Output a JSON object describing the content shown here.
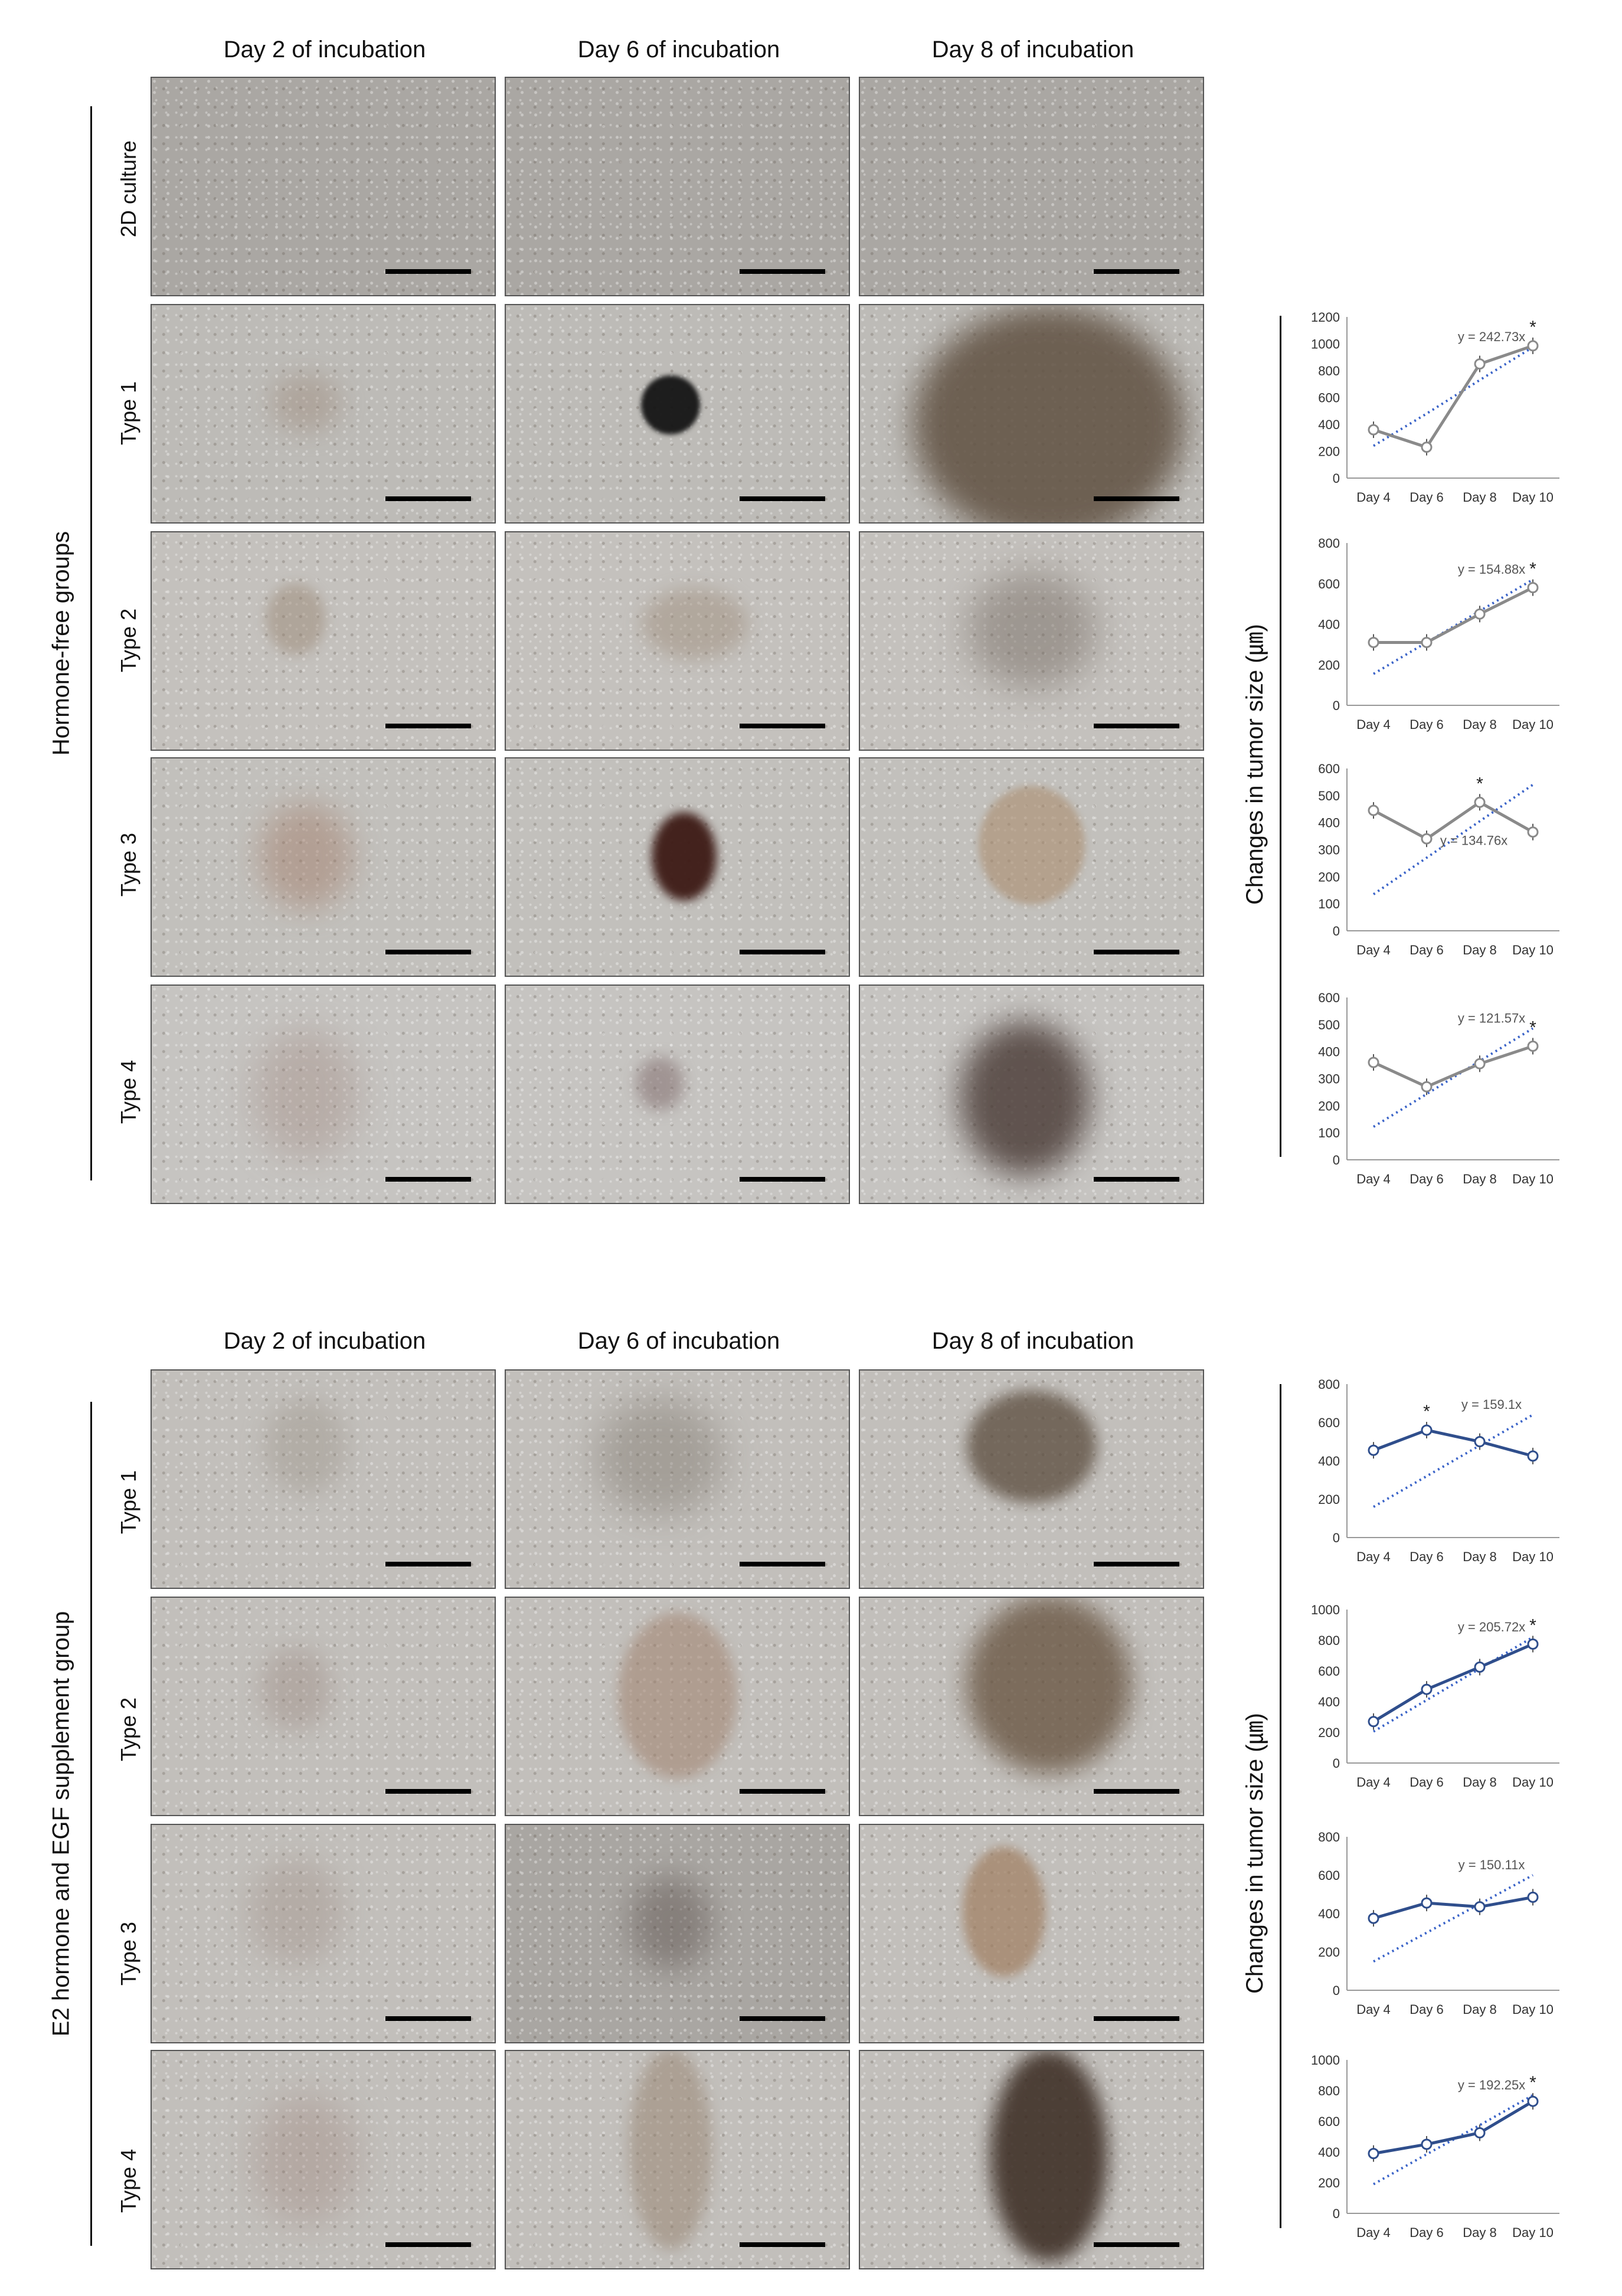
{
  "top": {
    "col_headers": [
      "Day 2 of incubation",
      "Day 6 of incubation",
      "Day 8 of incubation"
    ],
    "group_label": "Hormone-free groups",
    "row_labels": [
      "2D culture",
      "Type 1",
      "Type 2",
      "Type 3",
      "Type 4"
    ],
    "y_axis_label": "Changes in tumor size (㎛)"
  },
  "bottom": {
    "col_headers": [
      "Day 2 of incubation",
      "Day 6 of incubation",
      "Day 8 of incubation"
    ],
    "group_label": "E2 hormone and EGF supplement group",
    "row_labels": [
      "Type 1",
      "Type 2",
      "Type 3",
      "Type 4"
    ],
    "y_axis_label": "Changes in tumor size (㎛)"
  },
  "chart_data": [
    {
      "type": "line",
      "panel": "Hormone-free Type 1",
      "categories": [
        "Day 4",
        "Day 6",
        "Day 8",
        "Day 10"
      ],
      "series": [
        {
          "values": [
            360,
            230,
            850,
            985
          ]
        }
      ],
      "trend_label": "y = 242.73x",
      "trend": [
        240,
        480,
        730,
        975
      ],
      "ylim": [
        0,
        1200
      ],
      "yticks": [
        0,
        200,
        400,
        600,
        800,
        1000,
        1200
      ],
      "star_index": 3,
      "line_color": "#8a8a8a"
    },
    {
      "type": "line",
      "panel": "Hormone-free Type 2",
      "categories": [
        "Day 4",
        "Day 6",
        "Day 8",
        "Day 10"
      ],
      "series": [
        {
          "values": [
            310,
            310,
            450,
            580
          ]
        }
      ],
      "trend_label": "y = 154.88x",
      "trend": [
        155,
        310,
        465,
        620
      ],
      "ylim": [
        0,
        800
      ],
      "yticks": [
        0,
        200,
        400,
        600,
        800
      ],
      "star_index": 3,
      "line_color": "#8a8a8a"
    },
    {
      "type": "line",
      "panel": "Hormone-free Type 3",
      "categories": [
        "Day 4",
        "Day 6",
        "Day 8",
        "Day 10"
      ],
      "series": [
        {
          "values": [
            445,
            340,
            475,
            365
          ]
        }
      ],
      "trend_label": "y = 134.76x",
      "trend": [
        135,
        270,
        405,
        540
      ],
      "ylim": [
        0,
        600
      ],
      "yticks": [
        0,
        100,
        200,
        300,
        400,
        500,
        600
      ],
      "star_index": 2,
      "line_color": "#8a8a8a"
    },
    {
      "type": "line",
      "panel": "Hormone-free Type 4",
      "categories": [
        "Day 4",
        "Day 6",
        "Day 8",
        "Day 10"
      ],
      "series": [
        {
          "values": [
            360,
            270,
            355,
            420
          ]
        }
      ],
      "trend_label": "y = 121.57x",
      "trend": [
        122,
        243,
        365,
        486
      ],
      "ylim": [
        0,
        600
      ],
      "yticks": [
        0,
        100,
        200,
        300,
        400,
        500,
        600
      ],
      "star_index": 3,
      "line_color": "#8a8a8a"
    },
    {
      "type": "line",
      "panel": "E2+EGF Type 1",
      "categories": [
        "Day 4",
        "Day 6",
        "Day 8",
        "Day 10"
      ],
      "series": [
        {
          "values": [
            455,
            560,
            500,
            425
          ]
        }
      ],
      "trend_label": "y = 159.1x",
      "trend": [
        160,
        320,
        480,
        640
      ],
      "ylim": [
        0,
        800
      ],
      "yticks": [
        0,
        200,
        400,
        600,
        800
      ],
      "star_index": 1,
      "line_color": "#2f4e8c"
    },
    {
      "type": "line",
      "panel": "E2+EGF Type 2",
      "categories": [
        "Day 4",
        "Day 6",
        "Day 8",
        "Day 10"
      ],
      "series": [
        {
          "values": [
            270,
            480,
            625,
            775
          ]
        }
      ],
      "trend_label": "y = 205.72x",
      "trend": [
        205,
        410,
        615,
        820
      ],
      "ylim": [
        0,
        1000
      ],
      "yticks": [
        0,
        200,
        400,
        600,
        800,
        1000
      ],
      "star_index": 3,
      "line_color": "#2f4e8c"
    },
    {
      "type": "line",
      "panel": "E2+EGF Type 3",
      "categories": [
        "Day 4",
        "Day 6",
        "Day 8",
        "Day 10"
      ],
      "series": [
        {
          "values": [
            375,
            455,
            435,
            485
          ]
        }
      ],
      "trend_label": "y = 150.11x",
      "trend": [
        150,
        300,
        450,
        600
      ],
      "ylim": [
        0,
        800
      ],
      "yticks": [
        0,
        200,
        400,
        600,
        800
      ],
      "star_index": -1,
      "line_color": "#2f4e8c"
    },
    {
      "type": "line",
      "panel": "E2+EGF Type 4",
      "categories": [
        "Day 4",
        "Day 6",
        "Day 8",
        "Day 10"
      ],
      "series": [
        {
          "values": [
            390,
            450,
            525,
            730
          ]
        }
      ],
      "trend_label": "y = 192.25x",
      "trend": [
        190,
        385,
        575,
        770
      ],
      "ylim": [
        0,
        1000
      ],
      "yticks": [
        0,
        200,
        400,
        600,
        800,
        1000
      ],
      "star_index": 3,
      "line_color": "#2f4e8c"
    }
  ]
}
